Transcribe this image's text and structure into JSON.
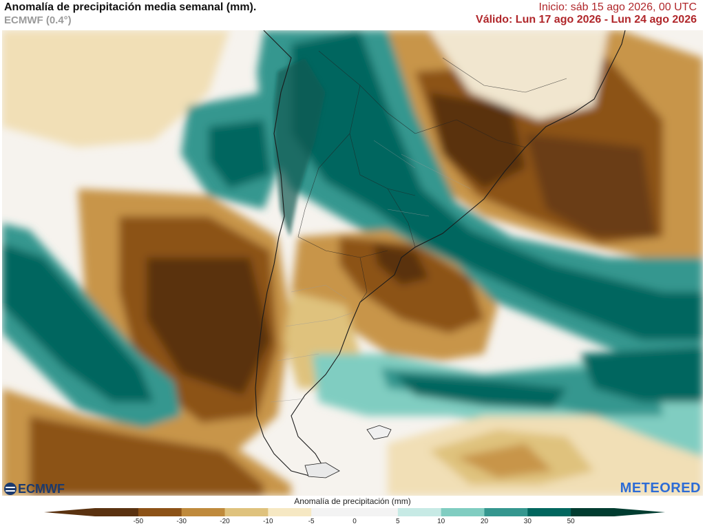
{
  "header": {
    "title": "Anomalía de precipitación media semanal (mm).",
    "subtitle": "ECMWF (0.4°)",
    "init": "Inicio:  sáb 15 ago 2026, 00 UTC",
    "valid": "Válido: Lun 17 ago 2026 - Lun 24 ago 2026"
  },
  "logos": {
    "left": "ECMWF",
    "right": "METEORED"
  },
  "legend": {
    "title": "Anomalía de precipitación (mm)",
    "ticks": [
      "-50",
      "-30",
      "-20",
      "-10",
      "-5",
      "0",
      "5",
      "10",
      "20",
      "30",
      "50"
    ],
    "colors": [
      "#5a3210",
      "#8c5217",
      "#bf8a3c",
      "#dfc27d",
      "#f6e8c3",
      "#f3f3f3",
      "#f3f3f3",
      "#c7eae5",
      "#80cdc1",
      "#35978f",
      "#01665e",
      "#003c30"
    ]
  },
  "colors": {
    "land_border": "#1a1a1a",
    "title_red": "#b0262a",
    "meteored_blue": "#2d6cd6"
  }
}
